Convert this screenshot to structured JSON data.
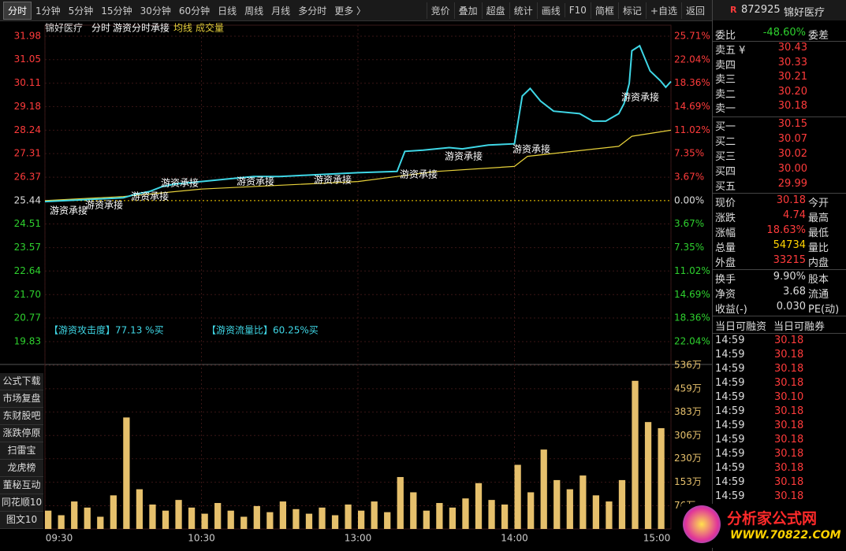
{
  "toolbar": {
    "tabs": [
      "分时",
      "1分钟",
      "5分钟",
      "15分钟",
      "30分钟",
      "60分钟",
      "日线",
      "周线",
      "月线",
      "多分时",
      "更多 〉"
    ],
    "tools": [
      "竞价",
      "叠加",
      "超盘",
      "统计",
      "画线",
      "F10",
      "简框",
      "标记",
      "+自选",
      "返回"
    ]
  },
  "sidebar": [
    "公式下载",
    "市场复盘",
    "东财股吧",
    "涨跌停原因",
    "扫雷宝",
    "龙虎榜",
    "董秘互动",
    "同花顺10",
    "图文10"
  ],
  "chart_data": {
    "type": "line",
    "title": "锦好医疗",
    "subtitle": "分时",
    "indicator": "游资分时承接",
    "xlim": [
      0,
      240
    ],
    "xticks": [
      {
        "value": 0,
        "label": "09:30"
      },
      {
        "value": 60,
        "label": "10:30"
      },
      {
        "value": 120,
        "label": "13:00"
      },
      {
        "value": 180,
        "label": "14:00"
      },
      {
        "value": 240,
        "label": "15:00"
      }
    ],
    "ylim": [
      19.83,
      31.98
    ],
    "yticks": [
      31.98,
      31.05,
      30.11,
      29.18,
      28.24,
      27.31,
      26.37,
      25.44,
      24.51,
      23.57,
      22.64,
      {
        "value": 21.7,
        "label": "21.70"
      },
      20.77,
      19.83
    ],
    "y2lim": [
      -22.04,
      25.71
    ],
    "y2ticks": [
      {
        "value": 25.71,
        "label": "25.71%"
      },
      {
        "value": 22.04,
        "label": "22.04%"
      },
      {
        "value": 18.36,
        "label": "18.36%"
      },
      {
        "value": 14.69,
        "label": "14.69%"
      },
      {
        "value": 11.02,
        "label": "11.02%"
      },
      {
        "value": 7.35,
        "label": "7.35%"
      },
      {
        "value": 3.67,
        "label": "3.67%"
      },
      {
        "value": 0,
        "label": "0.00%"
      },
      {
        "value": -3.67,
        "label": "3.67%"
      },
      {
        "value": -7.35,
        "label": "7.35%"
      },
      {
        "value": -11.02,
        "label": "11.02%"
      },
      {
        "value": -14.69,
        "label": "14.69%"
      },
      {
        "value": -18.36,
        "label": "18.36%"
      },
      {
        "value": -22.04,
        "label": "22.04%"
      }
    ],
    "series": [
      {
        "name": "分时",
        "color": "#3fd7e6",
        "x": [
          0,
          10,
          20,
          30,
          35,
          40,
          45,
          50,
          60,
          70,
          80,
          90,
          100,
          110,
          120,
          135,
          138,
          145,
          155,
          160,
          170,
          180,
          183,
          186,
          190,
          195,
          205,
          210,
          215,
          220,
          222,
          224,
          225,
          228,
          232,
          236,
          238,
          240
        ],
        "values": [
          25.4,
          25.45,
          25.5,
          25.55,
          25.7,
          25.8,
          26.0,
          26.1,
          26.2,
          26.3,
          26.4,
          26.4,
          26.45,
          26.5,
          26.55,
          26.6,
          27.4,
          27.45,
          27.55,
          27.5,
          27.65,
          27.7,
          29.6,
          29.9,
          29.4,
          29.0,
          28.9,
          28.6,
          28.6,
          28.9,
          29.3,
          30.1,
          31.4,
          31.6,
          30.6,
          30.2,
          29.95,
          30.18
        ]
      },
      {
        "name": "均线",
        "color": "#e8d23b",
        "x": [
          0,
          30,
          60,
          120,
          135,
          150,
          180,
          185,
          220,
          225,
          240
        ],
        "values": [
          25.44,
          25.6,
          25.9,
          26.2,
          26.4,
          26.6,
          26.8,
          27.2,
          27.6,
          28.0,
          28.24
        ]
      }
    ],
    "annotations": [
      "游资承接",
      "游资承接",
      "游资承接",
      "游资承接",
      "游资承接",
      "游资承接",
      "游资承接",
      "游资承接",
      "游资承接",
      "游资承接"
    ],
    "signals": [
      "【游资攻击度】77.13 %买",
      "【游资流量比】60.25%买"
    ],
    "volume": {
      "name": "成交量",
      "color": "#e6c06c",
      "ylim": [
        0,
        536
      ],
      "yticks": [
        {
          "value": 536,
          "label": "536万"
        },
        {
          "value": 459,
          "label": "459万"
        },
        {
          "value": 383,
          "label": "383万"
        },
        {
          "value": 306,
          "label": "306万"
        },
        {
          "value": 230,
          "label": "230万"
        },
        {
          "value": 153,
          "label": "153万"
        },
        {
          "value": 76,
          "label": "76万"
        }
      ],
      "x": [
        0,
        5,
        10,
        15,
        20,
        25,
        30,
        35,
        40,
        45,
        50,
        55,
        60,
        65,
        70,
        75,
        80,
        85,
        90,
        95,
        100,
        105,
        110,
        115,
        120,
        125,
        130,
        135,
        140,
        145,
        150,
        155,
        160,
        165,
        170,
        175,
        180,
        185,
        190,
        195,
        200,
        205,
        210,
        215,
        220,
        225,
        230,
        235
      ],
      "values": [
        60,
        45,
        90,
        70,
        40,
        110,
        365,
        130,
        80,
        60,
        95,
        70,
        50,
        85,
        60,
        40,
        75,
        55,
        90,
        65,
        50,
        70,
        45,
        80,
        60,
        90,
        55,
        170,
        120,
        60,
        85,
        70,
        100,
        150,
        95,
        80,
        210,
        120,
        260,
        160,
        130,
        175,
        110,
        90,
        160,
        485,
        350,
        330
      ]
    }
  },
  "quote": {
    "badge": "R",
    "code": "872925",
    "name": "锦好医疗",
    "top": {
      "label": "委比",
      "value": "-48.60%",
      "label2": "委差"
    },
    "asks": [
      {
        "label": "卖五 ¥",
        "value": "30.43"
      },
      {
        "label": "卖四",
        "value": "30.33"
      },
      {
        "label": "卖三",
        "value": "30.21"
      },
      {
        "label": "卖二",
        "value": "30.20"
      },
      {
        "label": "卖一",
        "value": "30.18"
      }
    ],
    "bids": [
      {
        "label": "买一",
        "value": "30.15"
      },
      {
        "label": "买二",
        "value": "30.07"
      },
      {
        "label": "买三",
        "value": "30.02"
      },
      {
        "label": "买四",
        "value": "30.00"
      },
      {
        "label": "买五",
        "value": "29.99"
      }
    ],
    "stats": [
      {
        "label": "现价",
        "value": "30.18",
        "label2": "今开"
      },
      {
        "label": "涨跌",
        "value": "4.74",
        "label2": "最高"
      },
      {
        "label": "涨幅",
        "value": "18.63%",
        "label2": "最低"
      },
      {
        "label": "总量",
        "value": "54734",
        "label2": "量比"
      },
      {
        "label": "外盘",
        "value": "33215",
        "label2": "内盘"
      }
    ],
    "finance": [
      {
        "label": "换手",
        "value": "9.90%",
        "label2": "股本"
      },
      {
        "label": "净资",
        "value": "3.68",
        "label2": "流通"
      },
      {
        "label": "收益(-)",
        "value": "0.030",
        "label2": "PE(动)"
      }
    ],
    "margin": [
      "当日可融资",
      "当日可融券"
    ],
    "trades": [
      {
        "time": "14:59",
        "price": "30.18"
      },
      {
        "time": "14:59",
        "price": "30.18"
      },
      {
        "time": "14:59",
        "price": "30.18"
      },
      {
        "time": "14:59",
        "price": "30.18"
      },
      {
        "time": "14:59",
        "price": "30.10"
      },
      {
        "time": "14:59",
        "price": "30.18"
      },
      {
        "time": "14:59",
        "price": "30.18"
      },
      {
        "time": "14:59",
        "price": "30.18"
      },
      {
        "time": "14:59",
        "price": "30.18"
      },
      {
        "time": "14:59",
        "price": "30.18"
      },
      {
        "time": "14:59",
        "price": "30.18"
      },
      {
        "time": "14:59",
        "price": "30.18"
      }
    ]
  },
  "watermark": {
    "name": "分析家公式网",
    "url": "WWW.70822.COM"
  }
}
